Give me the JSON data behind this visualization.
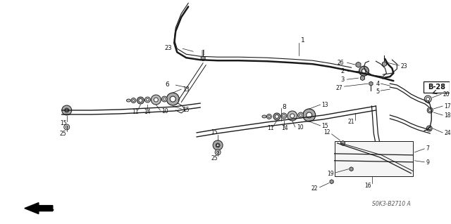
{
  "background_color": "#ffffff",
  "fig_width": 6.4,
  "fig_height": 3.19,
  "dpi": 100,
  "line_color": "#1a1a1a",
  "text_color": "#111111",
  "part_code": "S0K3-B2710 A"
}
